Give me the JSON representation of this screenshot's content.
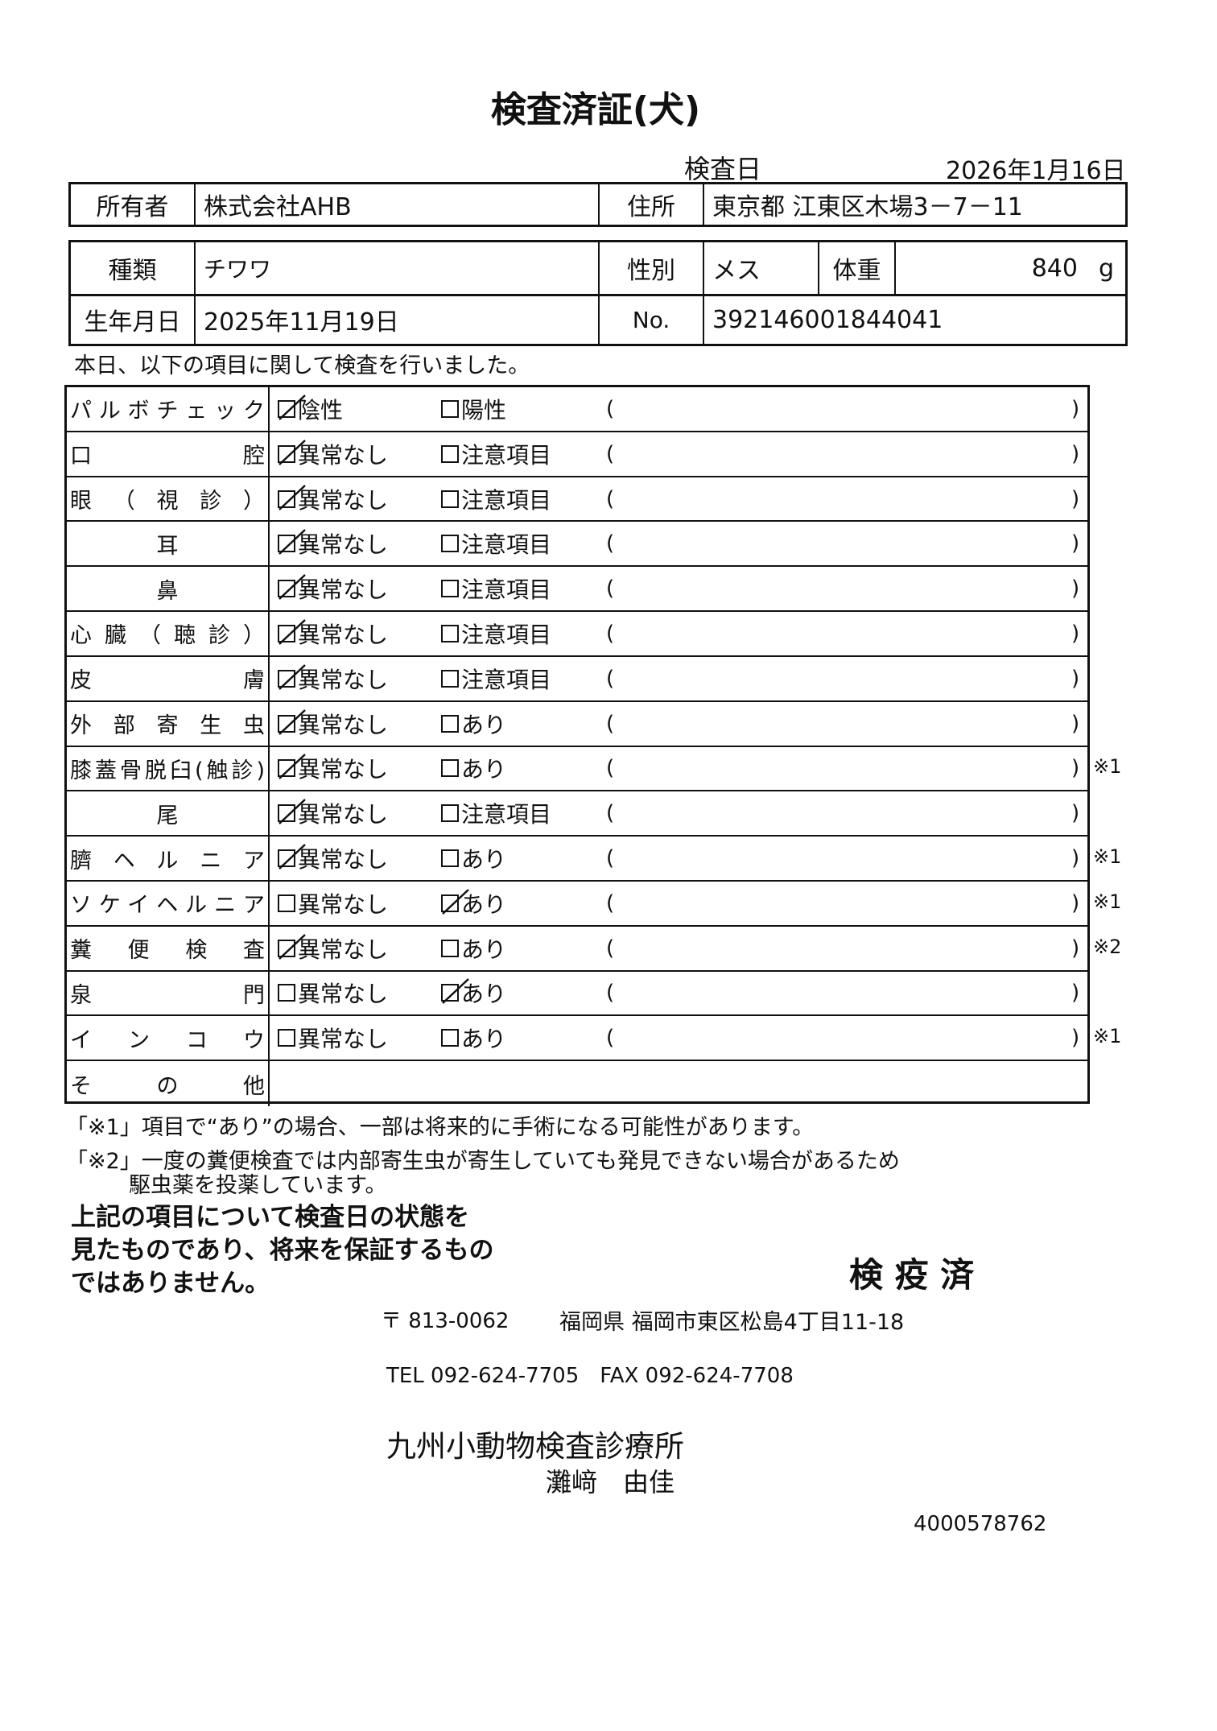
{
  "title": "検査済証(犬)",
  "inspection_date_label": "検査日",
  "inspection_date": "2026年1月16日",
  "owner": {
    "label": "所有者",
    "value": "株式会社AHB",
    "address_label": "住所",
    "address": "東京都 江東区木場3－7－11"
  },
  "pet": {
    "breed_label": "種類",
    "breed": "チワワ",
    "sex_label": "性別",
    "sex": "メス",
    "weight_label": "体重",
    "weight": "840",
    "weight_unit": "g",
    "birth_label": "生年月日",
    "birth": "2025年11月19日",
    "no_label": "No.",
    "no": "392146001844041"
  },
  "intro": "本日、以下の項目に関して検査を行いました。",
  "checks": [
    {
      "label": "パルボチェック",
      "opt1": "陰性",
      "opt2": "陽性",
      "checked": 1,
      "note": ""
    },
    {
      "label": "口腔",
      "opt1": "異常なし",
      "opt2": "注意項目",
      "checked": 1,
      "note": ""
    },
    {
      "label": "眼（視診）",
      "opt1": "異常なし",
      "opt2": "注意項目",
      "checked": 1,
      "note": ""
    },
    {
      "label": "耳",
      "opt1": "異常なし",
      "opt2": "注意項目",
      "checked": 1,
      "note": ""
    },
    {
      "label": "鼻",
      "opt1": "異常なし",
      "opt2": "注意項目",
      "checked": 1,
      "note": ""
    },
    {
      "label": "心臓（聴診）",
      "opt1": "異常なし",
      "opt2": "注意項目",
      "checked": 1,
      "note": ""
    },
    {
      "label": "皮膚",
      "opt1": "異常なし",
      "opt2": "注意項目",
      "checked": 1,
      "note": ""
    },
    {
      "label": "外部寄生虫",
      "opt1": "異常なし",
      "opt2": "あり",
      "checked": 1,
      "note": ""
    },
    {
      "label": "膝蓋骨脱臼(触診)",
      "opt1": "異常なし",
      "opt2": "あり",
      "checked": 1,
      "note": "※1"
    },
    {
      "label": "尾",
      "opt1": "異常なし",
      "opt2": "注意項目",
      "checked": 1,
      "note": ""
    },
    {
      "label": "臍ヘルニア",
      "opt1": "異常なし",
      "opt2": "あり",
      "checked": 1,
      "note": "※1"
    },
    {
      "label": "ソケイヘルニア",
      "opt1": "異常なし",
      "opt2": "あり",
      "checked": 2,
      "note": "※1"
    },
    {
      "label": "糞便検査",
      "opt1": "異常なし",
      "opt2": "あり",
      "checked": 1,
      "note": "※2"
    },
    {
      "label": "泉門",
      "opt1": "異常なし",
      "opt2": "あり",
      "checked": 2,
      "note": ""
    },
    {
      "label": "インコウ",
      "opt1": "異常なし",
      "opt2": "あり",
      "checked": 0,
      "note": "※1"
    }
  ],
  "other_label": "その他",
  "paren_open": "(",
  "paren_close": ")",
  "footnote1": "「※1」項目で“あり”の場合、一部は将来的に手術になる可能性があります。",
  "footnote2a": "「※2」一度の糞便検査では内部寄生虫が寄生していても発見できない場合があるため",
  "footnote2b": "駆虫薬を投薬しています。",
  "disclaimer": [
    "上記の項目について検査日の状態を",
    "見たものであり、将来を保証するもの",
    "ではありません。"
  ],
  "stamp": "検 疫 済",
  "clinic": {
    "postal": "〒 813-0062",
    "address": "福岡県 福岡市東区松島4丁目11-18",
    "phone": "TEL 092-624-7705　FAX 092-624-7708",
    "name": "九州小動物検査診療所",
    "person": "灘﨑　由佳"
  },
  "doc_number": "4000578762"
}
